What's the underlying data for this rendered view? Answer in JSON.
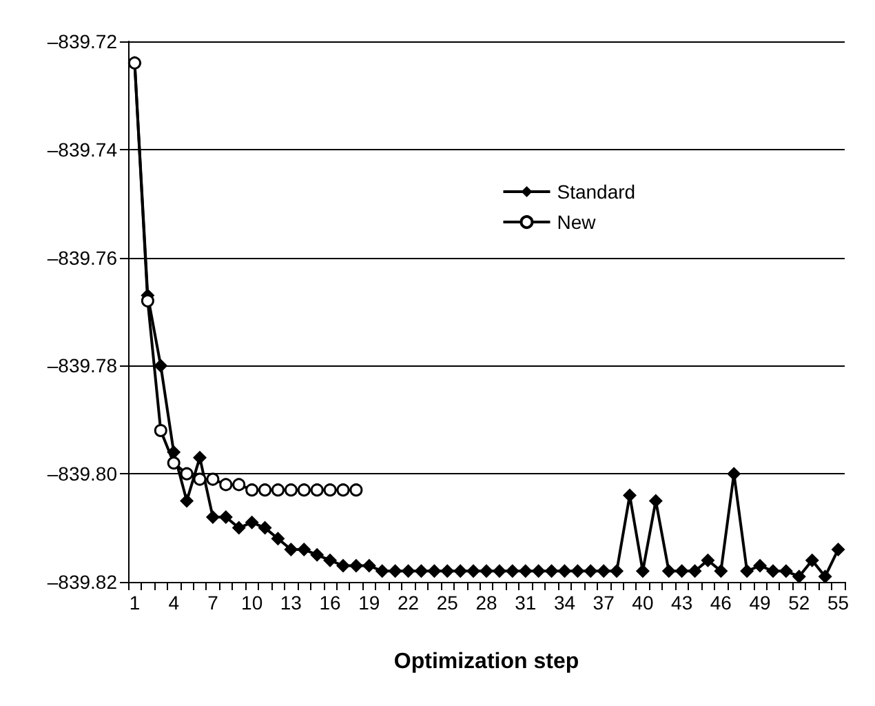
{
  "chart_data": {
    "type": "line",
    "xlabel": "Optimization step",
    "categories": [
      "1",
      null,
      null,
      "4",
      null,
      null,
      "7",
      null,
      null,
      "10",
      null,
      null,
      "13",
      null,
      null,
      "16",
      null,
      null,
      "19",
      null,
      null,
      "22",
      null,
      null,
      "25",
      null,
      null,
      "28",
      null,
      null,
      "31",
      null,
      null,
      "34",
      null,
      null,
      "37",
      null,
      null,
      "40",
      null,
      null,
      "43",
      null,
      null,
      "46",
      null,
      null,
      "49",
      null,
      null,
      "52",
      null,
      null,
      "55"
    ],
    "series": [
      {
        "name": "Standard",
        "color": "#000000",
        "marker": "diamond",
        "values": [
          -839.724,
          -839.767,
          -839.78,
          -839.796,
          -839.805,
          -839.797,
          -839.808,
          -839.808,
          -839.81,
          -839.809,
          -839.81,
          -839.812,
          -839.814,
          -839.814,
          -839.815,
          -839.816,
          -839.817,
          -839.817,
          -839.817,
          -839.818,
          -839.818,
          -839.818,
          -839.818,
          -839.818,
          -839.818,
          -839.818,
          -839.818,
          -839.818,
          -839.818,
          -839.818,
          -839.818,
          -839.818,
          -839.818,
          -839.818,
          -839.818,
          -839.818,
          -839.818,
          -839.818,
          -839.804,
          -839.818,
          -839.805,
          -839.818,
          -839.818,
          -839.818,
          -839.816,
          -839.818,
          -839.8,
          -839.818,
          -839.817,
          -839.818,
          -839.818,
          -839.819,
          -839.816,
          -839.819,
          -839.814
        ]
      },
      {
        "name": "New",
        "color": "#000000",
        "marker": "circle",
        "values": [
          -839.724,
          -839.768,
          -839.792,
          -839.798,
          -839.8,
          -839.801,
          -839.801,
          -839.802,
          -839.802,
          -839.803,
          -839.803,
          -839.803,
          -839.803,
          -839.803,
          -839.803,
          -839.803,
          -839.803,
          -839.803,
          null,
          null,
          null,
          null,
          null,
          null,
          null,
          null,
          null,
          null,
          null,
          null,
          null,
          null,
          null,
          null,
          null,
          null,
          null,
          null,
          null,
          null,
          null,
          null,
          null,
          null,
          null,
          null,
          null,
          null,
          null,
          null,
          null,
          null,
          null,
          null,
          null
        ]
      }
    ],
    "ylim": [
      -839.82,
      -839.72
    ],
    "yticks": [
      {
        "value": -839.82,
        "label": "–839.82"
      },
      {
        "value": -839.8,
        "label": "–839.80"
      },
      {
        "value": -839.78,
        "label": "–839.78"
      },
      {
        "value": -839.76,
        "label": "–839.76"
      },
      {
        "value": -839.74,
        "label": "–839.74"
      },
      {
        "value": -839.72,
        "label": "–839.72"
      }
    ],
    "grid": "y",
    "legend": "top right"
  }
}
